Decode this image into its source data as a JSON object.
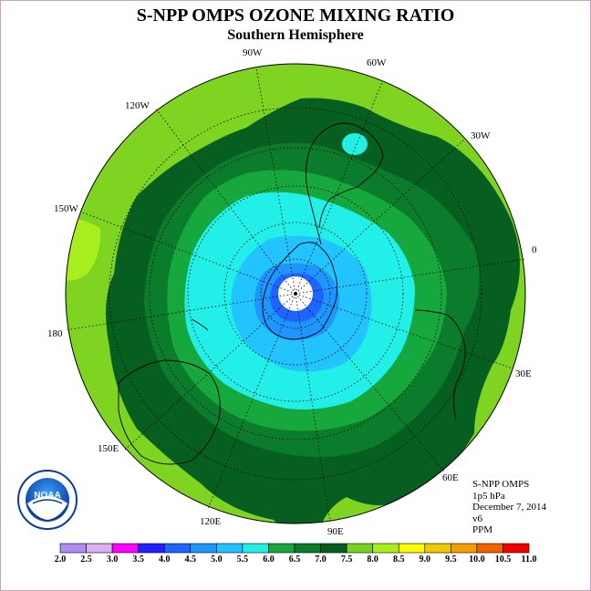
{
  "title": "S-NPP OMPS OZONE MIXING RATIO",
  "subtitle": "Southern Hemisphere",
  "longitude_labels": [
    {
      "text": "90W"
    },
    {
      "text": "60W"
    },
    {
      "text": "120W"
    },
    {
      "text": "30W"
    },
    {
      "text": "150W"
    },
    {
      "text": "0"
    },
    {
      "text": "180"
    },
    {
      "text": "30E"
    },
    {
      "text": "150E"
    },
    {
      "text": "60E"
    },
    {
      "text": "120E"
    },
    {
      "text": "90E"
    }
  ],
  "info": {
    "instrument": "S-NPP OMPS",
    "pressure_level": "1p5 hPa",
    "date": "December 7, 2014",
    "version": "v6",
    "units": "PPM"
  },
  "logo_text": "NOAA",
  "colorbar": {
    "ticks": [
      "2.0",
      "2.5",
      "3.0",
      "3.5",
      "4.0",
      "4.5",
      "5.0",
      "5.5",
      "6.0",
      "6.5",
      "7.0",
      "7.5",
      "8.0",
      "8.5",
      "9.0",
      "9.5",
      "10.0",
      "10.5",
      "11.0"
    ],
    "colors": [
      "#b28cf0",
      "#d9b0f0",
      "#ff00ff",
      "#2020ff",
      "#1e64ff",
      "#1e96ff",
      "#22c4ff",
      "#22f0e8",
      "#16a83c",
      "#0a7c2c",
      "#065e20",
      "#78d21e",
      "#aaf01e",
      "#ffff00",
      "#f0c800",
      "#f0a000",
      "#f06400",
      "#f00000",
      "#8c5a3c"
    ]
  }
}
